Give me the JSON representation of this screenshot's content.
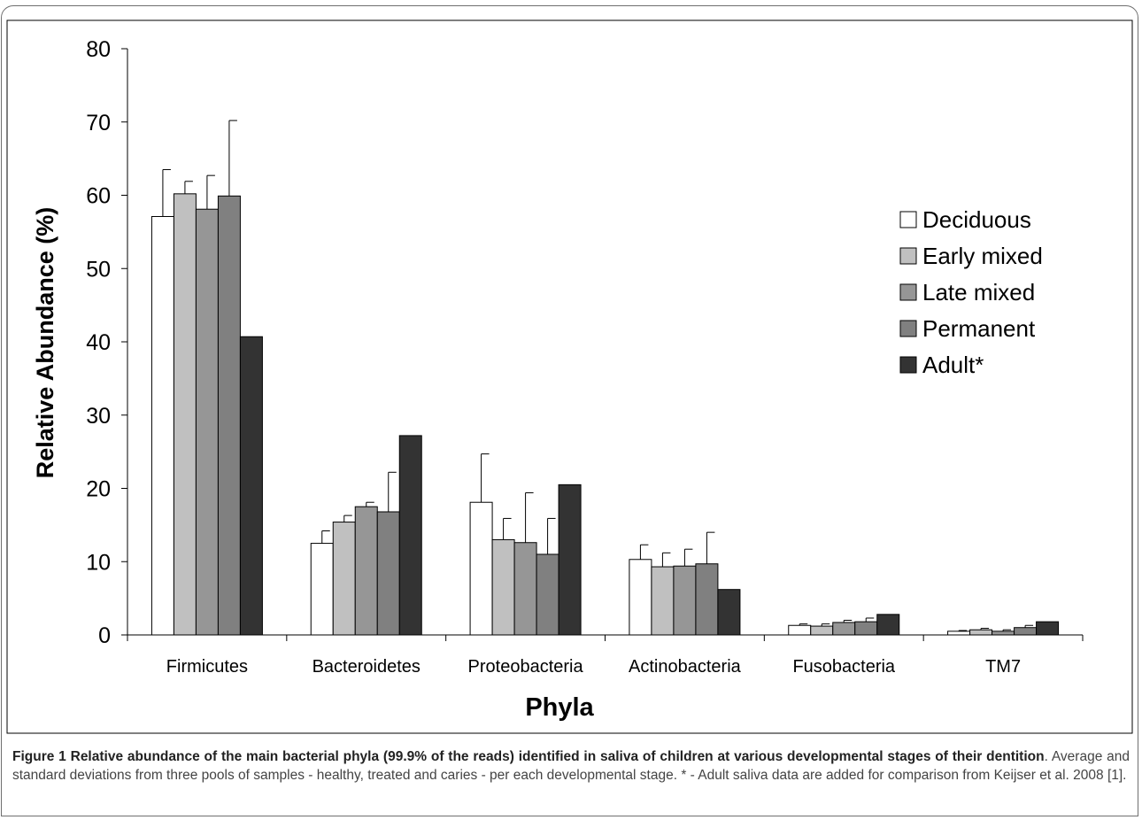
{
  "chart_data": {
    "type": "bar",
    "xlabel": "Phyla",
    "ylabel": "Relative Abundance (%)",
    "ylim": [
      0,
      80
    ],
    "yticks": [
      "0",
      "10",
      "20",
      "30",
      "40",
      "50",
      "60",
      "70",
      "80"
    ],
    "categories": [
      "Firmicutes",
      "Bacteroidetes",
      "Proteobacteria",
      "Actinobacteria",
      "Fusobacteria",
      "TM7"
    ],
    "legend_position": "right",
    "series": [
      {
        "name": "Deciduous",
        "color": "#ffffff",
        "values": [
          57.1,
          12.5,
          18.1,
          10.3,
          1.3,
          0.5
        ],
        "errors": [
          6.4,
          1.7,
          6.6,
          2.0,
          0.2,
          0.1
        ]
      },
      {
        "name": "Early mixed",
        "color": "#c0c0c0",
        "values": [
          60.2,
          15.4,
          13.0,
          9.3,
          1.2,
          0.7
        ],
        "errors": [
          1.7,
          0.9,
          2.9,
          1.9,
          0.3,
          0.2
        ]
      },
      {
        "name": "Late mixed",
        "color": "#969696",
        "values": [
          58.1,
          17.5,
          12.6,
          9.4,
          1.7,
          0.5
        ],
        "errors": [
          4.6,
          0.6,
          6.8,
          2.3,
          0.3,
          0.2
        ]
      },
      {
        "name": "Permanent",
        "color": "#808080",
        "values": [
          59.9,
          16.8,
          11.0,
          9.7,
          1.8,
          1.0
        ],
        "errors": [
          10.3,
          5.4,
          4.9,
          4.3,
          0.5,
          0.3
        ]
      },
      {
        "name": "Adult*",
        "color": "#333333",
        "values": [
          40.7,
          27.2,
          20.5,
          6.2,
          2.8,
          1.8
        ],
        "errors": [
          0,
          0,
          0,
          0,
          0,
          0
        ]
      }
    ]
  },
  "caption": {
    "title": "Figure 1 Relative abundance of the main bacterial phyla (99.9% of the reads) identified in saliva of children at various developmental stages of their dentition",
    "text": ". Average and standard deviations from three pools of samples - healthy, treated and caries - per each developmental stage. * - Adult saliva data are added for comparison from Keijser et al. 2008 [1]."
  }
}
